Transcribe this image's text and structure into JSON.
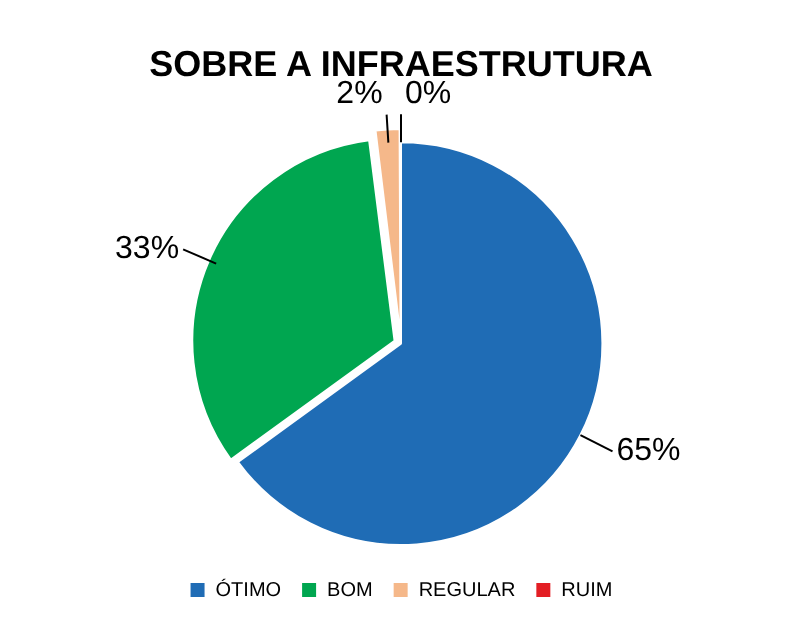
{
  "chart_data": {
    "type": "pie",
    "title": "SOBRE A INFRAESTRUTURA",
    "categories": [
      "ÓTIMO",
      "BOM",
      "REGULAR",
      "RUIM"
    ],
    "values": [
      65,
      33,
      2,
      0
    ],
    "value_labels": [
      "65%",
      "33%",
      "2%",
      "0%"
    ],
    "colors": [
      "#1f6cb5",
      "#00a650",
      "#f5b88a",
      "#e31e24"
    ],
    "legend": "bottom"
  }
}
